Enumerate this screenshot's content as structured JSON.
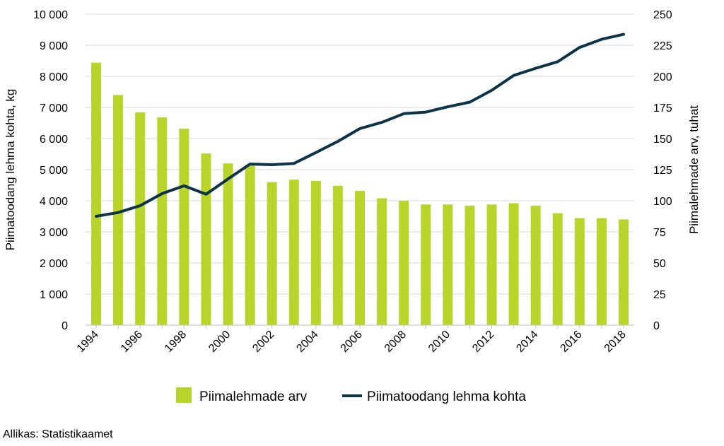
{
  "chart_data": {
    "type": "bar+line",
    "categories": [
      "1994",
      "1995",
      "1996",
      "1997",
      "1998",
      "1999",
      "2000",
      "2001",
      "2002",
      "2003",
      "2004",
      "2005",
      "2006",
      "2007",
      "2008",
      "2009",
      "2010",
      "2011",
      "2012",
      "2013",
      "2014",
      "2015",
      "2016",
      "2017",
      "2018"
    ],
    "x_tick_labels": [
      "1994",
      "1996",
      "1998",
      "2000",
      "2002",
      "2004",
      "2006",
      "2008",
      "2010",
      "2012",
      "2014",
      "2016",
      "2018"
    ],
    "series": [
      {
        "name": "Piimalehmade arv",
        "type": "bar",
        "axis": "right",
        "color": "#b9d52b",
        "values": [
          211,
          185,
          171,
          167,
          158,
          138,
          130,
          129,
          115,
          117,
          116,
          112,
          108,
          102,
          100,
          97,
          97,
          96,
          97,
          98,
          96,
          90,
          86,
          86,
          85
        ]
      },
      {
        "name": "Piimatoodang lehma kohta",
        "type": "line",
        "axis": "left",
        "color": "#0d3349",
        "values": [
          3500,
          3620,
          3840,
          4230,
          4480,
          4210,
          4700,
          5180,
          5160,
          5200,
          5550,
          5910,
          6320,
          6520,
          6800,
          6850,
          7020,
          7170,
          7550,
          8030,
          8260,
          8470,
          8930,
          9190,
          9350
        ]
      }
    ],
    "left_axis": {
      "label": "Piimatoodang lehma kohta, kg",
      "min": 0,
      "max": 10000,
      "step": 1000,
      "tick_labels": [
        "0",
        "1 000",
        "2 000",
        "3 000",
        "4 000",
        "5 000",
        "6 000",
        "7 000",
        "8 000",
        "9 000",
        "10 000"
      ]
    },
    "right_axis": {
      "label": "Piimalehmade arv, tuhat",
      "min": 0,
      "max": 250,
      "step": 25,
      "tick_labels": [
        "0",
        "25",
        "50",
        "75",
        "100",
        "125",
        "150",
        "175",
        "200",
        "225",
        "250"
      ]
    },
    "grid": true,
    "legend": "bottom"
  },
  "source": "Allikas: Statistikaamet"
}
